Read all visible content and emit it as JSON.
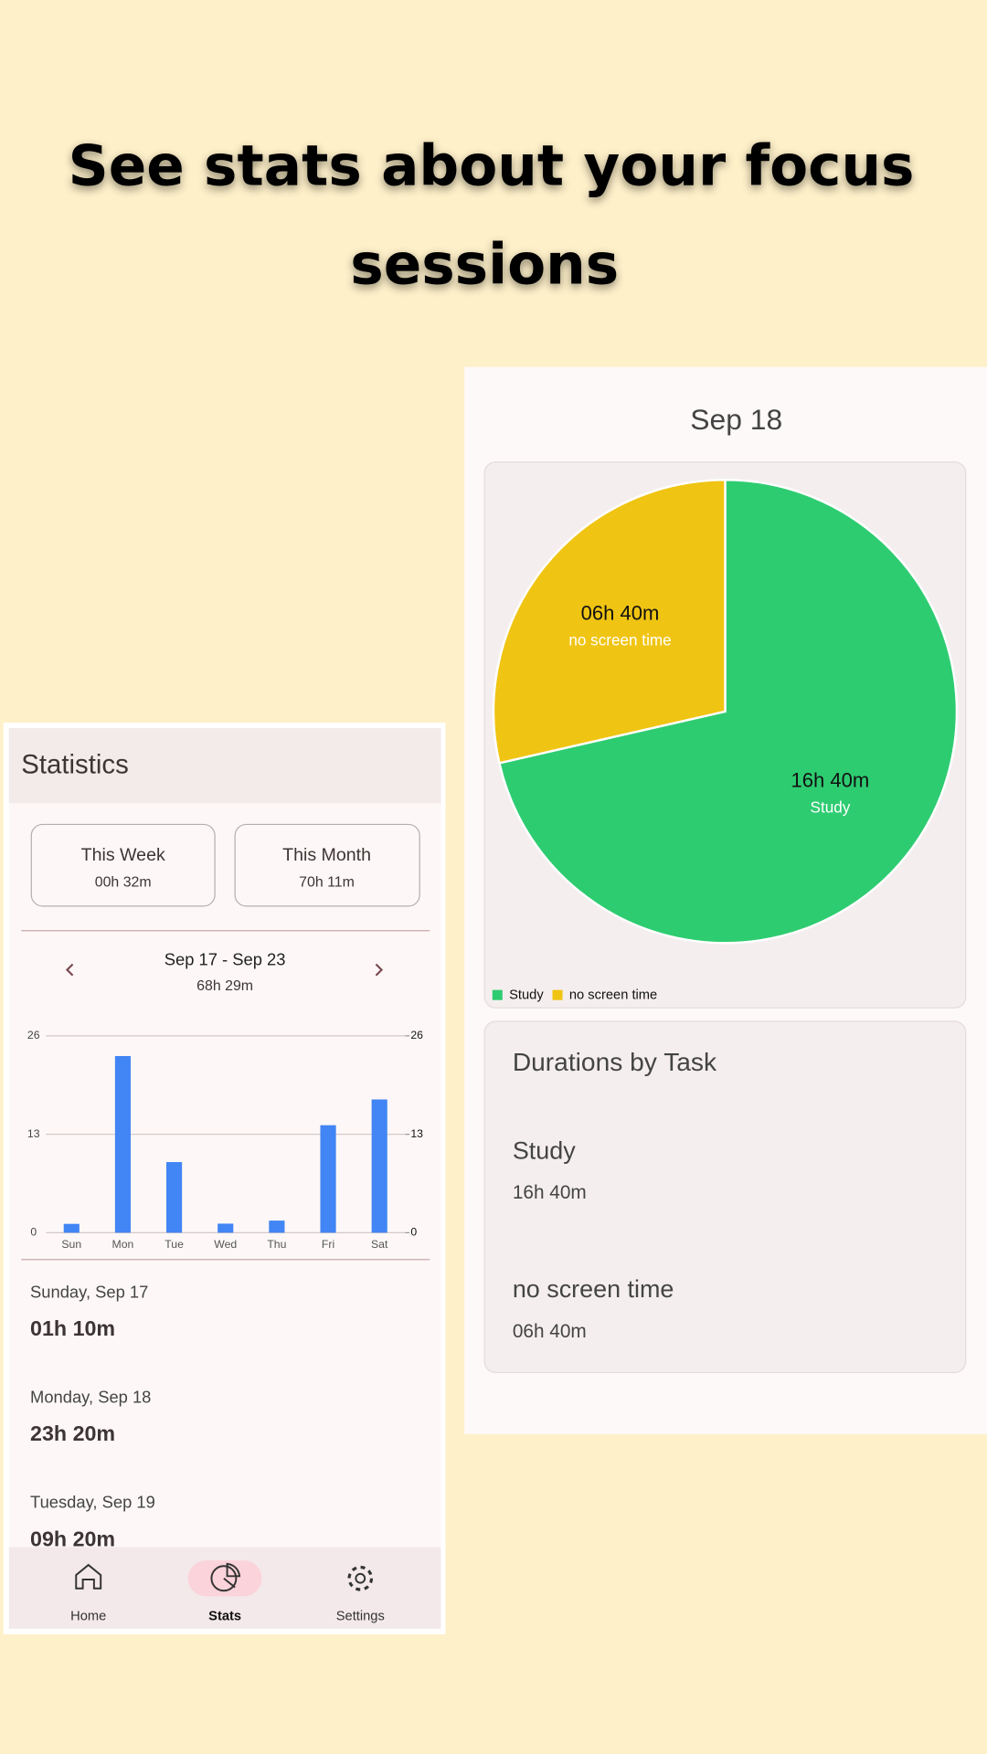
{
  "headline": {
    "lines": [
      "See stats about your focus",
      "sessions"
    ]
  },
  "statistics_screen": {
    "title": "Statistics",
    "summary_cards": [
      {
        "label": "This Week",
        "value": "00h 32m"
      },
      {
        "label": "This Month",
        "value": "70h 11m"
      }
    ],
    "week_nav": {
      "range": "Sep 17 - Sep 23",
      "total": "68h 29m"
    },
    "days": [
      {
        "date": "Sunday, Sep 17",
        "duration": "01h 10m"
      },
      {
        "date": "Monday, Sep 18",
        "duration": "23h 20m"
      },
      {
        "date": "Tuesday, Sep 19",
        "duration": "09h 20m"
      }
    ],
    "nav": [
      "Home",
      "Stats",
      "Settings"
    ]
  },
  "day_screen": {
    "title": "Sep 18",
    "tasks_title": "Durations by Task",
    "tasks": [
      {
        "name": "Study",
        "duration": "16h 40m"
      },
      {
        "name": "no screen time",
        "duration": "06h 40m"
      }
    ]
  },
  "chart_data": [
    {
      "type": "bar",
      "categories": [
        "Sun",
        "Mon",
        "Tue",
        "Wed",
        "Thu",
        "Fri",
        "Sat"
      ],
      "values": [
        1.17,
        23.33,
        9.33,
        1.2,
        1.6,
        14.2,
        17.6
      ],
      "color": "#4285f4",
      "ylim": [
        0,
        26
      ],
      "yticks": [
        0,
        13,
        26
      ],
      "y2lim": [
        0,
        26
      ],
      "y2ticks": [
        0,
        13,
        26
      ],
      "grid": true
    },
    {
      "type": "pie",
      "categories": [
        "Study",
        "no screen time"
      ],
      "values": [
        16.67,
        6.67
      ],
      "value_labels": [
        "16h 40m",
        "06h 40m"
      ],
      "colors": [
        "#2ecc71",
        "#f0c412"
      ],
      "legend": "bottom-left"
    }
  ]
}
